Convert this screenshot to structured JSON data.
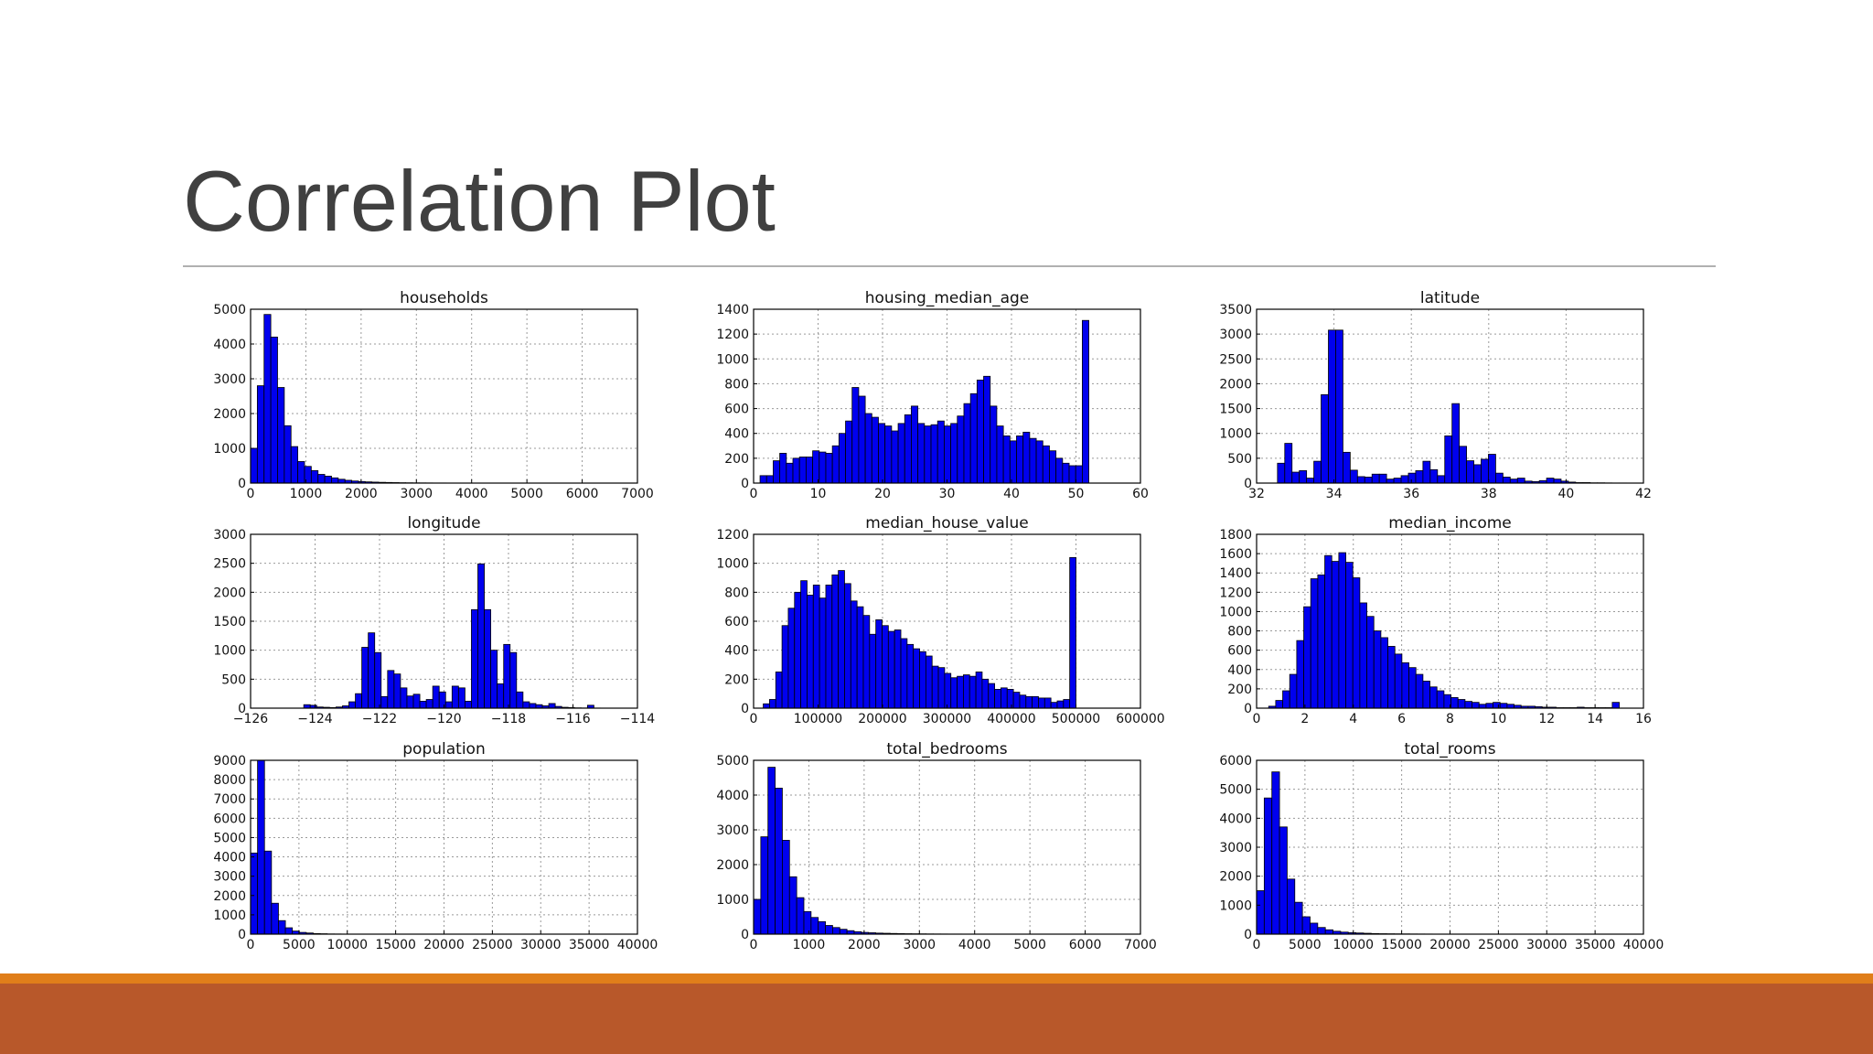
{
  "slide": {
    "title": "Correlation Plot",
    "colors": {
      "title": "#404040",
      "rule": "#b0b0b0",
      "accent_strip": "#e07e1a",
      "footer_band": "#b8582a",
      "bar_fill": "#0000ee",
      "bar_edge": "#000000"
    }
  },
  "chart_data": [
    {
      "type": "bar",
      "title": "households",
      "xlim": [
        0,
        7000
      ],
      "ylim": [
        0,
        5000
      ],
      "xticks": [
        "0",
        "1000",
        "2000",
        "3000",
        "4000",
        "5000",
        "6000",
        "7000"
      ],
      "xtick_values": [
        0,
        1000,
        2000,
        3000,
        4000,
        5000,
        6000,
        7000
      ],
      "yticks": [
        "0",
        "1000",
        "2000",
        "3000",
        "4000",
        "5000"
      ],
      "ytick_values": [
        0,
        1000,
        2000,
        3000,
        4000,
        5000
      ],
      "bin_start": 0,
      "bin_width": 122,
      "values": [
        1000,
        2800,
        4850,
        4200,
        2750,
        1650,
        1050,
        620,
        480,
        360,
        250,
        200,
        150,
        110,
        80,
        60,
        45,
        35,
        28,
        22,
        18,
        14,
        10,
        8,
        6,
        5,
        4,
        3,
        3,
        2,
        2,
        1,
        1,
        1,
        1
      ]
    },
    {
      "type": "bar",
      "title": "housing_median_age",
      "xlim": [
        0,
        60
      ],
      "ylim": [
        0,
        1400
      ],
      "xticks": [
        "0",
        "10",
        "20",
        "30",
        "40",
        "50",
        "60"
      ],
      "xtick_values": [
        0,
        10,
        20,
        30,
        40,
        50,
        60
      ],
      "yticks": [
        "0",
        "200",
        "400",
        "600",
        "800",
        "1000",
        "1200",
        "1400"
      ],
      "ytick_values": [
        0,
        200,
        400,
        600,
        800,
        1000,
        1200,
        1400
      ],
      "bin_start": 1,
      "bin_width": 1.02,
      "values": [
        60,
        60,
        180,
        240,
        160,
        200,
        210,
        210,
        260,
        250,
        240,
        300,
        400,
        500,
        770,
        700,
        560,
        530,
        480,
        460,
        420,
        480,
        550,
        620,
        480,
        460,
        470,
        500,
        460,
        480,
        540,
        640,
        720,
        830,
        860,
        620,
        460,
        380,
        340,
        380,
        410,
        360,
        340,
        300,
        260,
        200,
        160,
        140,
        140,
        1310
      ]
    },
    {
      "type": "bar",
      "title": "latitude",
      "xlim": [
        32,
        42
      ],
      "ylim": [
        0,
        3500
      ],
      "xticks": [
        "32",
        "34",
        "36",
        "38",
        "40",
        "42"
      ],
      "xtick_values": [
        32,
        34,
        36,
        38,
        40,
        42
      ],
      "yticks": [
        "0",
        "500",
        "1000",
        "1500",
        "2000",
        "2500",
        "3000",
        "3500"
      ],
      "ytick_values": [
        0,
        500,
        1000,
        1500,
        2000,
        2500,
        3000,
        3500
      ],
      "bin_start": 32.54,
      "bin_width": 0.188,
      "values": [
        400,
        800,
        220,
        250,
        100,
        440,
        1780,
        3080,
        3080,
        620,
        260,
        130,
        120,
        180,
        180,
        80,
        100,
        150,
        200,
        250,
        440,
        270,
        150,
        950,
        1600,
        740,
        450,
        370,
        480,
        580,
        200,
        120,
        80,
        100,
        40,
        30,
        50,
        100,
        80,
        40,
        20,
        10,
        10,
        5,
        5,
        3,
        2,
        2,
        1,
        1
      ]
    },
    {
      "type": "bar",
      "title": "longitude",
      "xlim": [
        -126,
        -114
      ],
      "ylim": [
        0,
        3000
      ],
      "xticks": [
        "−126",
        "−124",
        "−122",
        "−120",
        "−118",
        "−116",
        "−114"
      ],
      "xtick_values": [
        -126,
        -124,
        -122,
        -120,
        -118,
        -116,
        -114
      ],
      "yticks": [
        "0",
        "500",
        "1000",
        "1500",
        "2000",
        "2500",
        "3000"
      ],
      "ytick_values": [
        0,
        500,
        1000,
        1500,
        2000,
        2500,
        3000
      ],
      "bin_start": -124.35,
      "bin_width": 0.2,
      "values": [
        60,
        50,
        20,
        15,
        10,
        20,
        40,
        110,
        250,
        1050,
        1300,
        960,
        200,
        650,
        590,
        350,
        210,
        240,
        120,
        150,
        380,
        280,
        110,
        380,
        350,
        120,
        1700,
        2490,
        1700,
        1000,
        420,
        1100,
        960,
        280,
        110,
        80,
        60,
        40,
        80,
        30,
        15,
        10,
        5,
        3,
        50,
        2,
        1,
        1,
        1,
        1
      ]
    },
    {
      "type": "bar",
      "title": "median_house_value",
      "xlim": [
        0,
        600000
      ],
      "ylim": [
        0,
        1200
      ],
      "xticks": [
        "0",
        "100000",
        "200000",
        "300000",
        "400000",
        "500000",
        "600000"
      ],
      "xtick_values": [
        0,
        100000,
        200000,
        300000,
        400000,
        500000,
        600000
      ],
      "yticks": [
        "0",
        "200",
        "400",
        "600",
        "800",
        "1000",
        "1200"
      ],
      "ytick_values": [
        0,
        200,
        400,
        600,
        800,
        1000,
        1200
      ],
      "bin_start": 14999,
      "bin_width": 9700,
      "values": [
        30,
        60,
        250,
        570,
        690,
        800,
        880,
        780,
        850,
        760,
        850,
        920,
        950,
        860,
        740,
        700,
        640,
        510,
        610,
        570,
        530,
        540,
        480,
        440,
        410,
        390,
        360,
        290,
        280,
        240,
        210,
        220,
        230,
        220,
        250,
        200,
        170,
        130,
        140,
        130,
        110,
        90,
        80,
        80,
        70,
        70,
        40,
        50,
        60,
        1040
      ]
    },
    {
      "type": "bar",
      "title": "median_income",
      "xlim": [
        0,
        16
      ],
      "ylim": [
        0,
        1800
      ],
      "xticks": [
        "0",
        "2",
        "4",
        "6",
        "8",
        "10",
        "12",
        "14",
        "16"
      ],
      "xtick_values": [
        0,
        2,
        4,
        6,
        8,
        10,
        12,
        14,
        16
      ],
      "yticks": [
        "0",
        "200",
        "400",
        "600",
        "800",
        "1000",
        "1200",
        "1400",
        "1600",
        "1800"
      ],
      "ytick_values": [
        0,
        200,
        400,
        600,
        800,
        1000,
        1200,
        1400,
        1600,
        1800
      ],
      "bin_start": 0.5,
      "bin_width": 0.29,
      "values": [
        20,
        80,
        180,
        350,
        700,
        1050,
        1340,
        1380,
        1580,
        1520,
        1610,
        1510,
        1350,
        1090,
        950,
        800,
        730,
        640,
        560,
        470,
        420,
        350,
        280,
        220,
        180,
        140,
        110,
        90,
        70,
        60,
        40,
        50,
        60,
        50,
        40,
        30,
        20,
        20,
        15,
        10,
        10,
        5,
        5,
        5,
        10,
        5,
        5,
        5,
        5,
        60
      ]
    },
    {
      "type": "bar",
      "title": "population",
      "xlim": [
        0,
        40000
      ],
      "ylim": [
        0,
        9000
      ],
      "xticks": [
        "0",
        "5000",
        "10000",
        "15000",
        "20000",
        "25000",
        "30000",
        "35000",
        "40000"
      ],
      "xtick_values": [
        0,
        5000,
        10000,
        15000,
        20000,
        25000,
        30000,
        35000,
        40000
      ],
      "yticks": [
        "0",
        "1000",
        "2000",
        "3000",
        "4000",
        "5000",
        "6000",
        "7000",
        "8000",
        "9000"
      ],
      "ytick_values": [
        0,
        1000,
        2000,
        3000,
        4000,
        5000,
        6000,
        7000,
        8000,
        9000
      ],
      "bin_start": 0,
      "bin_width": 720,
      "values": [
        4200,
        9000,
        4300,
        1600,
        700,
        330,
        160,
        90,
        60,
        30,
        20,
        10,
        8,
        5,
        4,
        3,
        2,
        2,
        1,
        1
      ]
    },
    {
      "type": "bar",
      "title": "total_bedrooms",
      "xlim": [
        0,
        7000
      ],
      "ylim": [
        0,
        5000
      ],
      "xticks": [
        "0",
        "1000",
        "2000",
        "3000",
        "4000",
        "5000",
        "6000",
        "7000"
      ],
      "xtick_values": [
        0,
        1000,
        2000,
        3000,
        4000,
        5000,
        6000,
        7000
      ],
      "yticks": [
        "0",
        "1000",
        "2000",
        "3000",
        "4000",
        "5000"
      ],
      "ytick_values": [
        0,
        1000,
        2000,
        3000,
        4000,
        5000
      ],
      "bin_start": 0,
      "bin_width": 130,
      "values": [
        1000,
        2800,
        4800,
        4200,
        2700,
        1650,
        1050,
        650,
        480,
        360,
        250,
        190,
        140,
        100,
        70,
        50,
        40,
        30,
        25,
        20,
        15,
        12,
        10,
        8,
        6,
        5,
        4,
        3,
        3,
        2
      ]
    },
    {
      "type": "bar",
      "title": "total_rooms",
      "xlim": [
        0,
        40000
      ],
      "ylim": [
        0,
        6000
      ],
      "xticks": [
        "0",
        "5000",
        "10000",
        "15000",
        "20000",
        "25000",
        "30000",
        "35000",
        "40000"
      ],
      "xtick_values": [
        0,
        5000,
        10000,
        15000,
        20000,
        25000,
        30000,
        35000,
        40000
      ],
      "yticks": [
        "0",
        "1000",
        "2000",
        "3000",
        "4000",
        "5000",
        "6000"
      ],
      "ytick_values": [
        0,
        1000,
        2000,
        3000,
        4000,
        5000,
        6000
      ],
      "bin_start": 0,
      "bin_width": 790,
      "values": [
        1500,
        4700,
        5600,
        3700,
        1900,
        1100,
        600,
        380,
        230,
        150,
        100,
        70,
        50,
        40,
        30,
        20,
        15,
        12,
        10,
        8,
        6,
        5,
        4,
        3,
        2,
        2,
        1,
        1
      ]
    }
  ]
}
